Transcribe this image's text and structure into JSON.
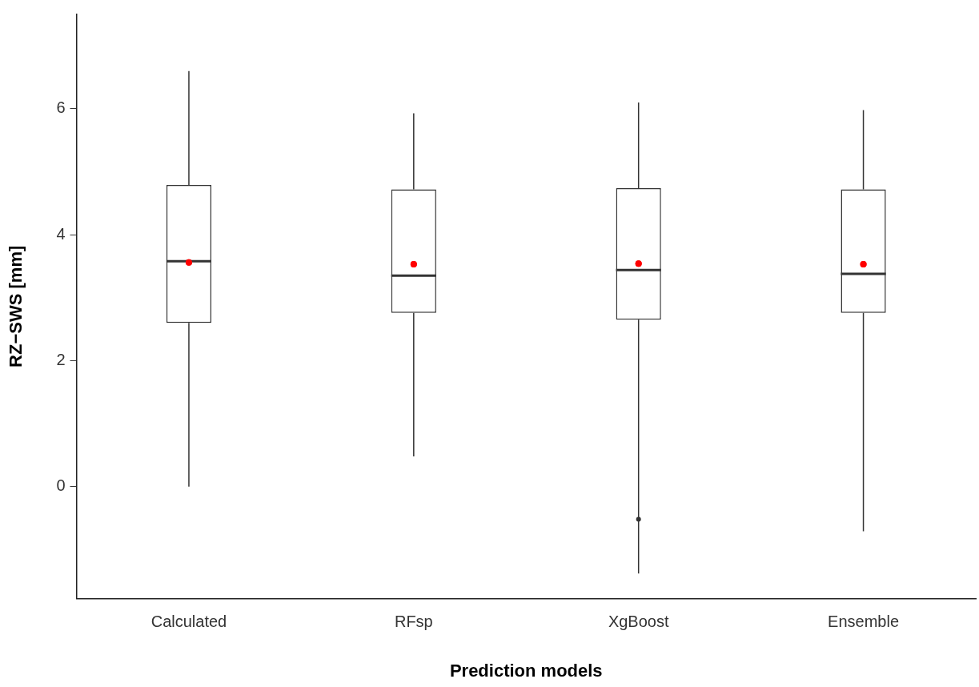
{
  "chart_data": {
    "type": "box",
    "xlabel": "Prediction models",
    "ylabel": "RZ−SWS [mm]",
    "categories": [
      "Calculated",
      "RFsp",
      "XgBoost",
      "Ensemble"
    ],
    "boxes": [
      {
        "low": 0,
        "q1": 2.6,
        "median": 3.58,
        "q3": 4.79,
        "high": 6.6,
        "mean": 3.56
      },
      {
        "low": 0.48,
        "q1": 2.76,
        "median": 3.35,
        "q3": 4.72,
        "high": 5.93,
        "mean": 3.53
      },
      {
        "low": -1.38,
        "q1": 2.65,
        "median": 3.44,
        "q3": 4.74,
        "high": 6.1,
        "mean": 3.54,
        "outliers": [
          -0.52
        ]
      },
      {
        "low": -0.71,
        "q1": 2.76,
        "median": 3.38,
        "q3": 4.72,
        "high": 5.98,
        "mean": 3.53
      }
    ],
    "ylim": [
      -1.78,
      7.5
    ],
    "yticks": [
      0,
      2,
      4,
      6
    ],
    "grid": false,
    "legend": false
  }
}
